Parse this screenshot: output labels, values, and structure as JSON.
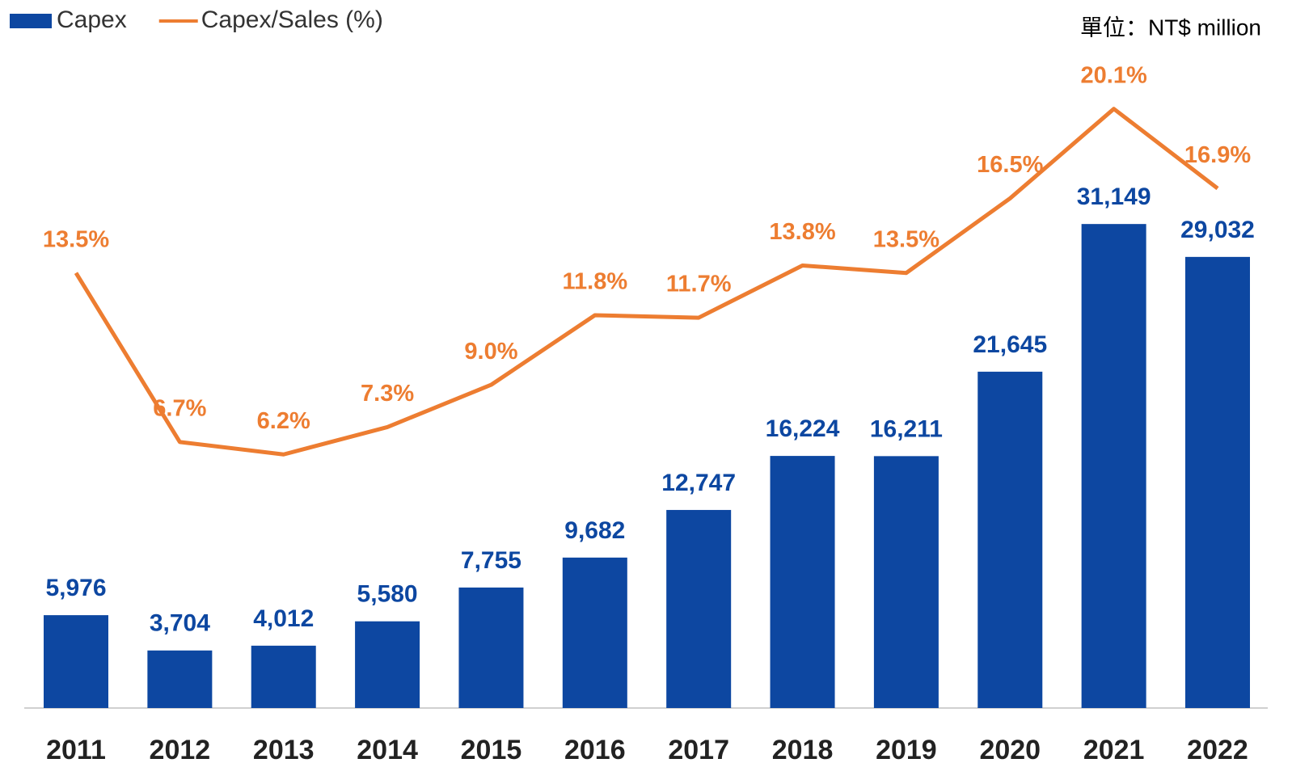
{
  "chart_data": {
    "type": "bar_line",
    "annotation": "單位：NT$ million",
    "categories": [
      "2011",
      "2012",
      "2013",
      "2014",
      "2015",
      "2016",
      "2017",
      "2018",
      "2019",
      "2020",
      "2021",
      "2022"
    ],
    "series": [
      {
        "name": "Capex",
        "type": "bar",
        "color": "#0d47a1",
        "values": [
          5976,
          3704,
          4012,
          5580,
          7755,
          9682,
          12747,
          16224,
          16211,
          21645,
          31149,
          29032
        ],
        "value_labels": [
          "5,976",
          "3,704",
          "4,012",
          "5,580",
          "7,755",
          "9,682",
          "12,747",
          "16,224",
          "16,211",
          "21,645",
          "31,149",
          "29,032"
        ]
      },
      {
        "name": "Capex/Sales (%)",
        "type": "line",
        "axis": "y2",
        "color": "#ed7d31",
        "values": [
          13.5,
          6.7,
          6.2,
          7.3,
          9.0,
          11.8,
          11.7,
          13.8,
          13.5,
          16.5,
          20.1,
          16.9
        ],
        "value_labels": [
          "13.5%",
          "6.7%",
          "6.2%",
          "7.3%",
          "9.0%",
          "11.8%",
          "11.7%",
          "13.8%",
          "13.5%",
          "16.5%",
          "20.1%",
          "16.9%"
        ]
      }
    ],
    "ylim": [
      0,
      40000
    ],
    "y2lim": [
      -4,
      21
    ]
  }
}
